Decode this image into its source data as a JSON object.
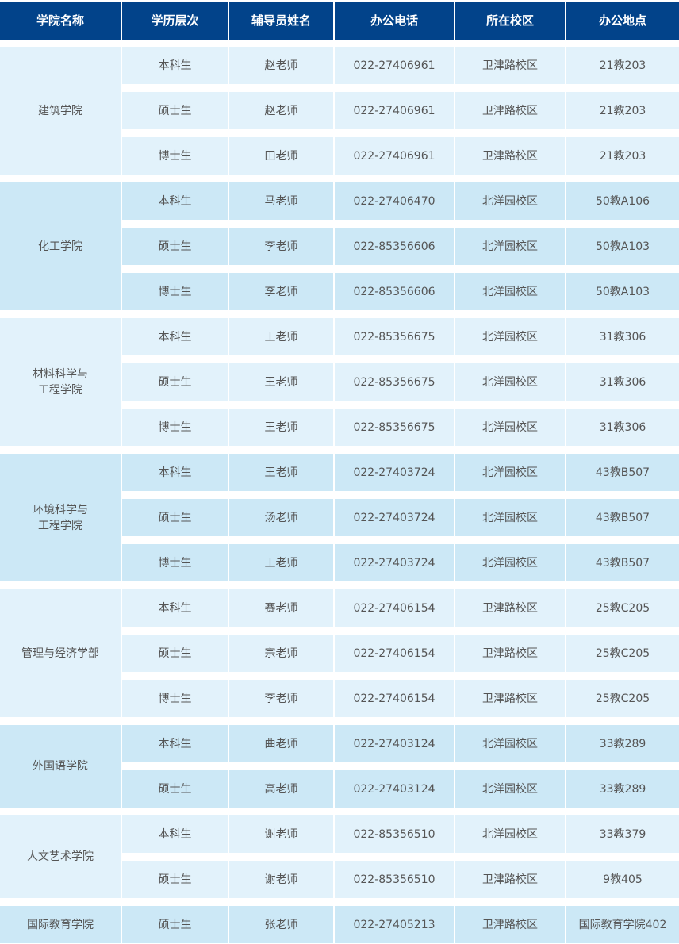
{
  "colors": {
    "header_bg": "#02438a",
    "row_light": "#e2f2fb",
    "row_dark": "#cce8f6",
    "text": "#555555"
  },
  "headers": [
    "学院名称",
    "学历层次",
    "辅导员姓名",
    "办公电话",
    "所在校区",
    "办公地点"
  ],
  "groups": [
    {
      "college": "建筑学院",
      "rows": [
        [
          "本科生",
          "赵老师",
          "022-27406961",
          "卫津路校区",
          "21教203"
        ],
        [
          "硕士生",
          "赵老师",
          "022-27406961",
          "卫津路校区",
          "21教203"
        ],
        [
          "博士生",
          "田老师",
          "022-27406961",
          "卫津路校区",
          "21教203"
        ]
      ]
    },
    {
      "college": "化工学院",
      "rows": [
        [
          "本科生",
          "马老师",
          "022-27406470",
          "北洋园校区",
          "50教A106"
        ],
        [
          "硕士生",
          "李老师",
          "022-85356606",
          "北洋园校区",
          "50教A103"
        ],
        [
          "博士生",
          "李老师",
          "022-85356606",
          "北洋园校区",
          "50教A103"
        ]
      ]
    },
    {
      "college": "材料科学与\n工程学院",
      "rows": [
        [
          "本科生",
          "王老师",
          "022-85356675",
          "北洋园校区",
          "31教306"
        ],
        [
          "硕士生",
          "王老师",
          "022-85356675",
          "北洋园校区",
          "31教306"
        ],
        [
          "博士生",
          "王老师",
          "022-85356675",
          "北洋园校区",
          "31教306"
        ]
      ]
    },
    {
      "college": "环境科学与\n工程学院",
      "rows": [
        [
          "本科生",
          "王老师",
          "022-27403724",
          "北洋园校区",
          "43教B507"
        ],
        [
          "硕士生",
          "汤老师",
          "022-27403724",
          "北洋园校区",
          "43教B507"
        ],
        [
          "博士生",
          "王老师",
          "022-27403724",
          "北洋园校区",
          "43教B507"
        ]
      ]
    },
    {
      "college": "管理与经济学部",
      "rows": [
        [
          "本科生",
          "赛老师",
          "022-27406154",
          "卫津路校区",
          "25教C205"
        ],
        [
          "硕士生",
          "宗老师",
          "022-27406154",
          "卫津路校区",
          "25教C205"
        ],
        [
          "博士生",
          "李老师",
          "022-27406154",
          "卫津路校区",
          "25教C205"
        ]
      ]
    },
    {
      "college": "外国语学院",
      "rows": [
        [
          "本科生",
          "曲老师",
          "022-27403124",
          "北洋园校区",
          "33教289"
        ],
        [
          "硕士生",
          "高老师",
          "022-27403124",
          "北洋园校区",
          "33教289"
        ]
      ]
    },
    {
      "college": "人文艺术学院",
      "rows": [
        [
          "本科生",
          "谢老师",
          "022-85356510",
          "北洋园校区",
          "33教379"
        ],
        [
          "硕士生",
          "谢老师",
          "022-85356510",
          "卫津路校区",
          "9教405"
        ]
      ]
    },
    {
      "college": "国际教育学院",
      "rows": [
        [
          "硕士生",
          "张老师",
          "022-27405213",
          "卫津路校区",
          "国际教育学院402"
        ]
      ]
    }
  ]
}
